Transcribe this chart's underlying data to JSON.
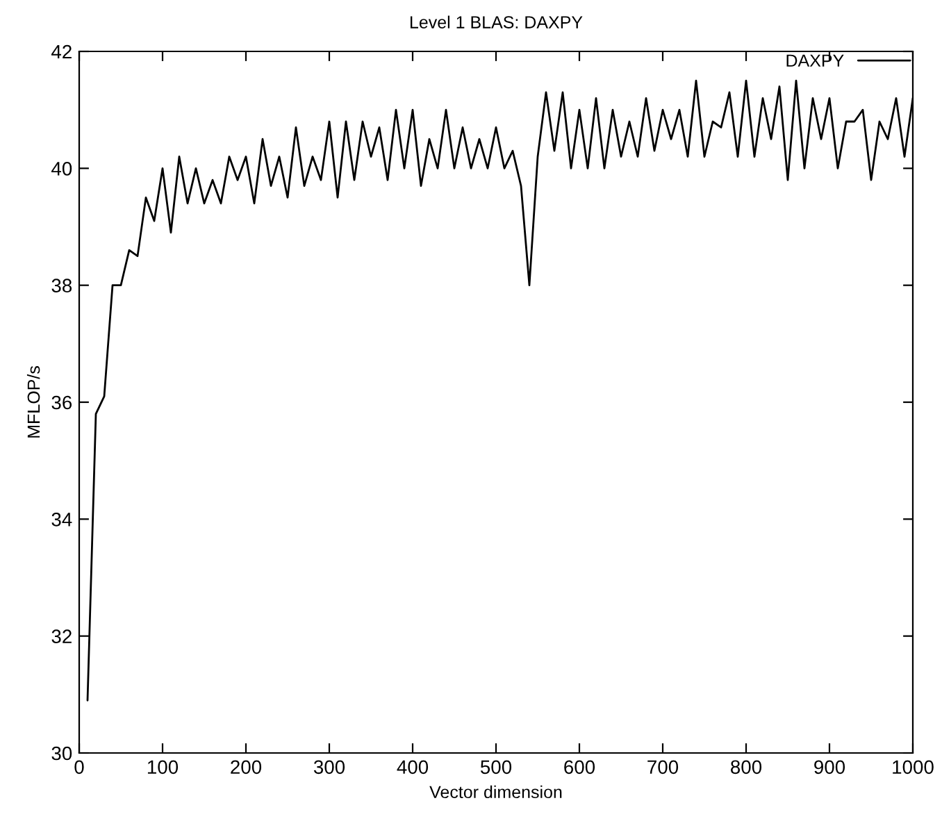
{
  "chart_data": {
    "type": "line",
    "title": "Level 1 BLAS: DAXPY",
    "xlabel": "Vector dimension",
    "ylabel": "MFLOP/s",
    "xlim": [
      0,
      1000
    ],
    "ylim": [
      30,
      42
    ],
    "xticks": [
      0,
      100,
      200,
      300,
      400,
      500,
      600,
      700,
      800,
      900,
      1000
    ],
    "yticks": [
      30,
      32,
      34,
      36,
      38,
      40,
      42
    ],
    "grid": false,
    "legend": "top right",
    "marker": "none",
    "line_style": "solid",
    "x": [
      10,
      20,
      30,
      40,
      50,
      60,
      70,
      80,
      90,
      100,
      110,
      120,
      130,
      140,
      150,
      160,
      170,
      180,
      190,
      200,
      210,
      220,
      230,
      240,
      250,
      260,
      270,
      280,
      290,
      300,
      310,
      320,
      330,
      340,
      350,
      360,
      370,
      380,
      390,
      400,
      410,
      420,
      430,
      440,
      450,
      460,
      470,
      480,
      490,
      500,
      510,
      520,
      530,
      540,
      550,
      560,
      570,
      580,
      590,
      600,
      610,
      620,
      630,
      640,
      650,
      660,
      670,
      680,
      690,
      700,
      710,
      720,
      730,
      740,
      750,
      760,
      770,
      780,
      790,
      800,
      810,
      820,
      830,
      840,
      850,
      860,
      870,
      880,
      890,
      900,
      910,
      920,
      930,
      940,
      950,
      960,
      970,
      980,
      990,
      1000
    ],
    "series": [
      {
        "name": "DAXPY",
        "color": "#000000",
        "values": [
          30.9,
          35.8,
          36.1,
          38.0,
          38.0,
          38.6,
          38.5,
          39.5,
          39.1,
          40.0,
          38.9,
          40.2,
          39.4,
          40.0,
          39.4,
          39.8,
          39.4,
          40.2,
          39.8,
          40.2,
          39.4,
          40.5,
          39.7,
          40.2,
          39.5,
          40.7,
          39.7,
          40.2,
          39.8,
          40.8,
          39.5,
          40.8,
          39.8,
          40.8,
          40.2,
          40.7,
          39.8,
          41.0,
          40.0,
          41.0,
          39.7,
          40.5,
          40.0,
          41.0,
          40.0,
          40.7,
          40.0,
          40.5,
          40.0,
          40.7,
          40.0,
          40.3,
          39.7,
          38.0,
          40.2,
          41.3,
          40.3,
          41.3,
          40.0,
          41.0,
          40.0,
          41.2,
          40.0,
          41.0,
          40.2,
          40.8,
          40.2,
          41.2,
          40.3,
          41.0,
          40.5,
          41.0,
          40.2,
          41.5,
          40.2,
          40.8,
          40.7,
          41.3,
          40.2,
          41.5,
          40.2,
          41.2,
          40.5,
          41.4,
          39.8,
          41.5,
          40.0,
          41.2,
          40.5,
          41.2,
          40.0,
          40.8,
          40.8,
          41.0,
          39.8,
          40.8,
          40.5,
          41.2,
          40.2,
          41.2
        ]
      }
    ]
  }
}
